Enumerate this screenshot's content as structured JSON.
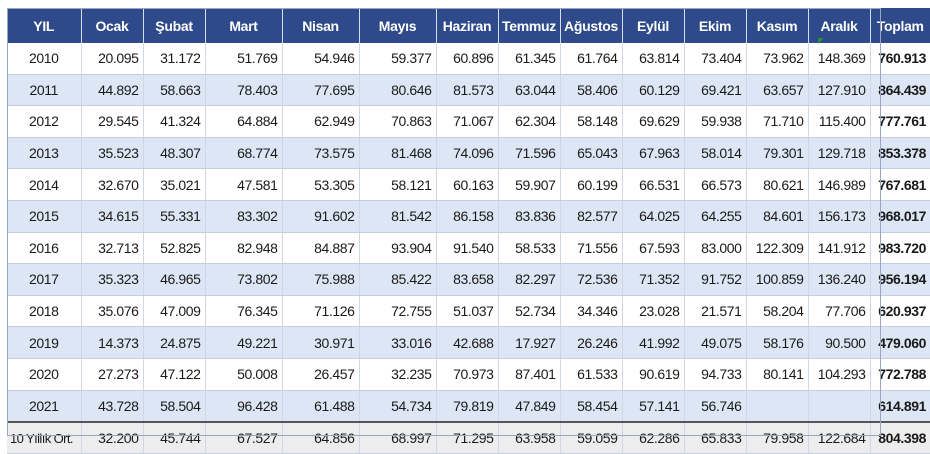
{
  "table": {
    "headers": [
      "YIL",
      "Ocak",
      "Şubat",
      "Mart",
      "Nisan",
      "Mayıs",
      "Haziran",
      "Temmuz",
      "Ağustos",
      "Eylül",
      "Ekim",
      "Kasım",
      "Aralık",
      "Toplam"
    ],
    "rows": [
      [
        "2010",
        "20.095",
        "31.172",
        "51.769",
        "54.946",
        "59.377",
        "60.896",
        "61.345",
        "61.764",
        "63.814",
        "73.404",
        "73.962",
        "148.369",
        "760.913"
      ],
      [
        "2011",
        "44.892",
        "58.663",
        "78.403",
        "77.695",
        "80.646",
        "81.573",
        "63.044",
        "58.406",
        "60.129",
        "69.421",
        "63.657",
        "127.910",
        "864.439"
      ],
      [
        "2012",
        "29.545",
        "41.324",
        "64.884",
        "62.949",
        "70.863",
        "71.067",
        "62.304",
        "58.148",
        "69.629",
        "59.938",
        "71.710",
        "115.400",
        "777.761"
      ],
      [
        "2013",
        "35.523",
        "48.307",
        "68.774",
        "73.575",
        "81.468",
        "74.096",
        "71.596",
        "65.043",
        "67.963",
        "58.014",
        "79.301",
        "129.718",
        "853.378"
      ],
      [
        "2014",
        "32.670",
        "35.021",
        "47.581",
        "53.305",
        "58.121",
        "60.163",
        "59.907",
        "60.199",
        "66.531",
        "66.573",
        "80.621",
        "146.989",
        "767.681"
      ],
      [
        "2015",
        "34.615",
        "55.331",
        "83.302",
        "91.602",
        "81.542",
        "86.158",
        "83.836",
        "82.577",
        "64.025",
        "64.255",
        "84.601",
        "156.173",
        "968.017"
      ],
      [
        "2016",
        "32.713",
        "52.825",
        "82.948",
        "84.887",
        "93.904",
        "91.540",
        "58.533",
        "71.556",
        "67.593",
        "83.000",
        "122.309",
        "141.912",
        "983.720"
      ],
      [
        "2017",
        "35.323",
        "46.965",
        "73.802",
        "75.988",
        "85.422",
        "83.658",
        "82.297",
        "72.536",
        "71.352",
        "91.752",
        "100.859",
        "136.240",
        "956.194"
      ],
      [
        "2018",
        "35.076",
        "47.009",
        "76.345",
        "71.126",
        "72.755",
        "51.037",
        "52.734",
        "34.346",
        "23.028",
        "21.571",
        "58.204",
        "77.706",
        "620.937"
      ],
      [
        "2019",
        "14.373",
        "24.875",
        "49.221",
        "30.971",
        "33.016",
        "42.688",
        "17.927",
        "26.246",
        "41.992",
        "49.075",
        "58.176",
        "90.500",
        "479.060"
      ],
      [
        "2020",
        "27.273",
        "47.122",
        "50.008",
        "26.457",
        "32.235",
        "70.973",
        "87.401",
        "61.533",
        "90.619",
        "94.733",
        "80.141",
        "104.293",
        "772.788"
      ],
      [
        "2021",
        "43.728",
        "58.504",
        "96.428",
        "61.488",
        "54.734",
        "79.819",
        "47.849",
        "58.454",
        "57.141",
        "56.746",
        "",
        "",
        "614.891"
      ]
    ],
    "average_row": [
      "10 Yıllık Ort.",
      "32.200",
      "45.744",
      "67.527",
      "64.856",
      "68.997",
      "71.295",
      "63.958",
      "59.059",
      "62.286",
      "65.833",
      "79.958",
      "122.684",
      "804.398"
    ]
  },
  "colors": {
    "header_bg": "#2f4a8a",
    "header_text": "#ffffff",
    "stripe_bg": "#dce6f4",
    "average_bg": "#ededed",
    "marker": "#2a8f3c"
  }
}
